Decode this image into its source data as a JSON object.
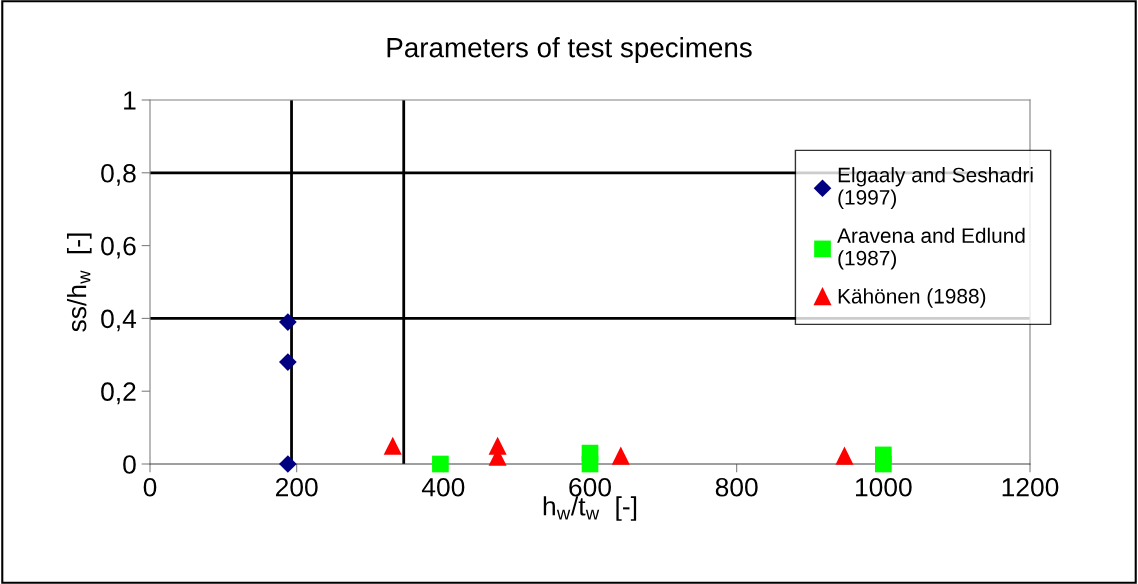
{
  "chart_data": {
    "type": "scatter",
    "title": "Parameters of test specimens",
    "xlabel": "h$_{w}$/t$_{w}$  [-]",
    "ylabel": "ss/h$_{w}$  [-]",
    "xlim": [
      0,
      1200
    ],
    "xticks": [
      0,
      200,
      400,
      600,
      800,
      1000,
      1200
    ],
    "ylim": [
      0,
      1
    ],
    "yticks": [
      {
        "value": 0,
        "label": "0"
      },
      {
        "value": 0.2,
        "label": "0,2"
      },
      {
        "value": 0.4,
        "label": "0,4"
      },
      {
        "value": 0.6,
        "label": "0,6"
      },
      {
        "value": 0.8,
        "label": "0,8"
      },
      {
        "value": 1,
        "label": "1"
      }
    ],
    "grid": false,
    "legend": "right",
    "series": [
      {
        "name": "Elgaaly and Seshadri\n(1997)",
        "color": "#000080",
        "marker": "diamond",
        "x": [
          188,
          188,
          188
        ],
        "values": [
          0.39,
          0.28,
          0
        ]
      },
      {
        "name": "Aravena and Edlund\n(1987)",
        "color": "#00ff00",
        "marker": "square",
        "x": [
          396,
          600,
          600,
          1000,
          1000
        ],
        "values": [
          0,
          0,
          0.03,
          0,
          0.025
        ]
      },
      {
        "name": "Kähönen (1988)",
        "color": "#ff0000",
        "marker": "triangle",
        "x": [
          331,
          474,
          474,
          642,
          947
        ],
        "values": [
          0.05,
          0.05,
          0.02,
          0.023,
          0.023
        ]
      }
    ],
    "ref_lines": [
      {
        "axis": "x",
        "value": 193,
        "color": "#000000"
      },
      {
        "axis": "x",
        "value": 346,
        "color": "#000000"
      },
      {
        "axis": "y",
        "value": 0.4,
        "color": "#000000"
      },
      {
        "axis": "y",
        "value": 0.8,
        "color": "#000000"
      }
    ]
  }
}
